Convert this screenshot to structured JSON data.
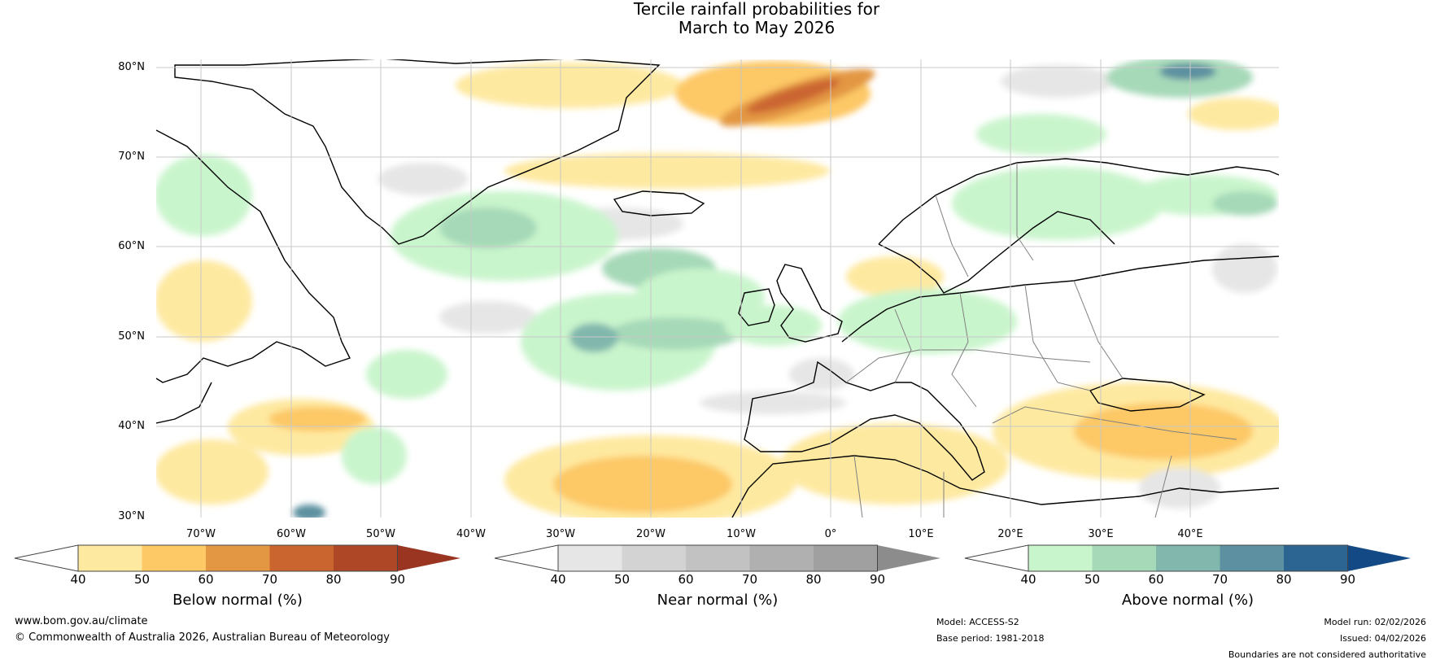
{
  "title": {
    "line1": "Tercile rainfall probabilities for",
    "line2": "March to May 2026"
  },
  "map": {
    "latitude_labels": [
      "80°N",
      "70°N",
      "60°N",
      "50°N",
      "40°N",
      "30°N"
    ],
    "longitude_labels": [
      "70°W",
      "60°W",
      "50°W",
      "40°W",
      "30°W",
      "20°W",
      "10°W",
      "0°",
      "10°E",
      "20°E",
      "30°E",
      "40°E"
    ],
    "ocean_color": "#ffffff",
    "grid_color": "#c8c8c8",
    "coast_color": "#000000",
    "border_color": "#808080"
  },
  "colorbars": [
    {
      "name": "below-normal",
      "label": "Below normal (%)",
      "ticks": [
        "40",
        "50",
        "60",
        "70",
        "80",
        "90"
      ],
      "colors": [
        "#ffffff",
        "#fee9a0",
        "#fdc866",
        "#e39743",
        "#cb6530",
        "#ae4726",
        "#9a3521"
      ]
    },
    {
      "name": "near-normal",
      "label": "Near normal (%)",
      "ticks": [
        "40",
        "50",
        "60",
        "70",
        "80",
        "90"
      ],
      "colors": [
        "#ffffff",
        "#e6e6e6",
        "#d3d3d3",
        "#c2c2c2",
        "#b0b0b0",
        "#a0a0a0",
        "#8c8c8c"
      ]
    },
    {
      "name": "above-normal",
      "label": "Above normal (%)",
      "ticks": [
        "40",
        "50",
        "60",
        "70",
        "80",
        "90"
      ],
      "colors": [
        "#ffffff",
        "#c9f5cc",
        "#a6d9b8",
        "#82b7ad",
        "#5d90a0",
        "#2d6592",
        "#134a85"
      ]
    }
  ],
  "footer": {
    "website": "www.bom.gov.au/climate",
    "copyright": "© Commonwealth of Australia 2026, Australian Bureau of Meteorology",
    "model": "Model: ACCESS-S2",
    "base_period": "Base period: 1981-2018",
    "model_run": "Model run: 02/02/2026",
    "issued": "Issued: 04/02/2026",
    "disclaimer": "Boundaries are not considered authoritative"
  }
}
